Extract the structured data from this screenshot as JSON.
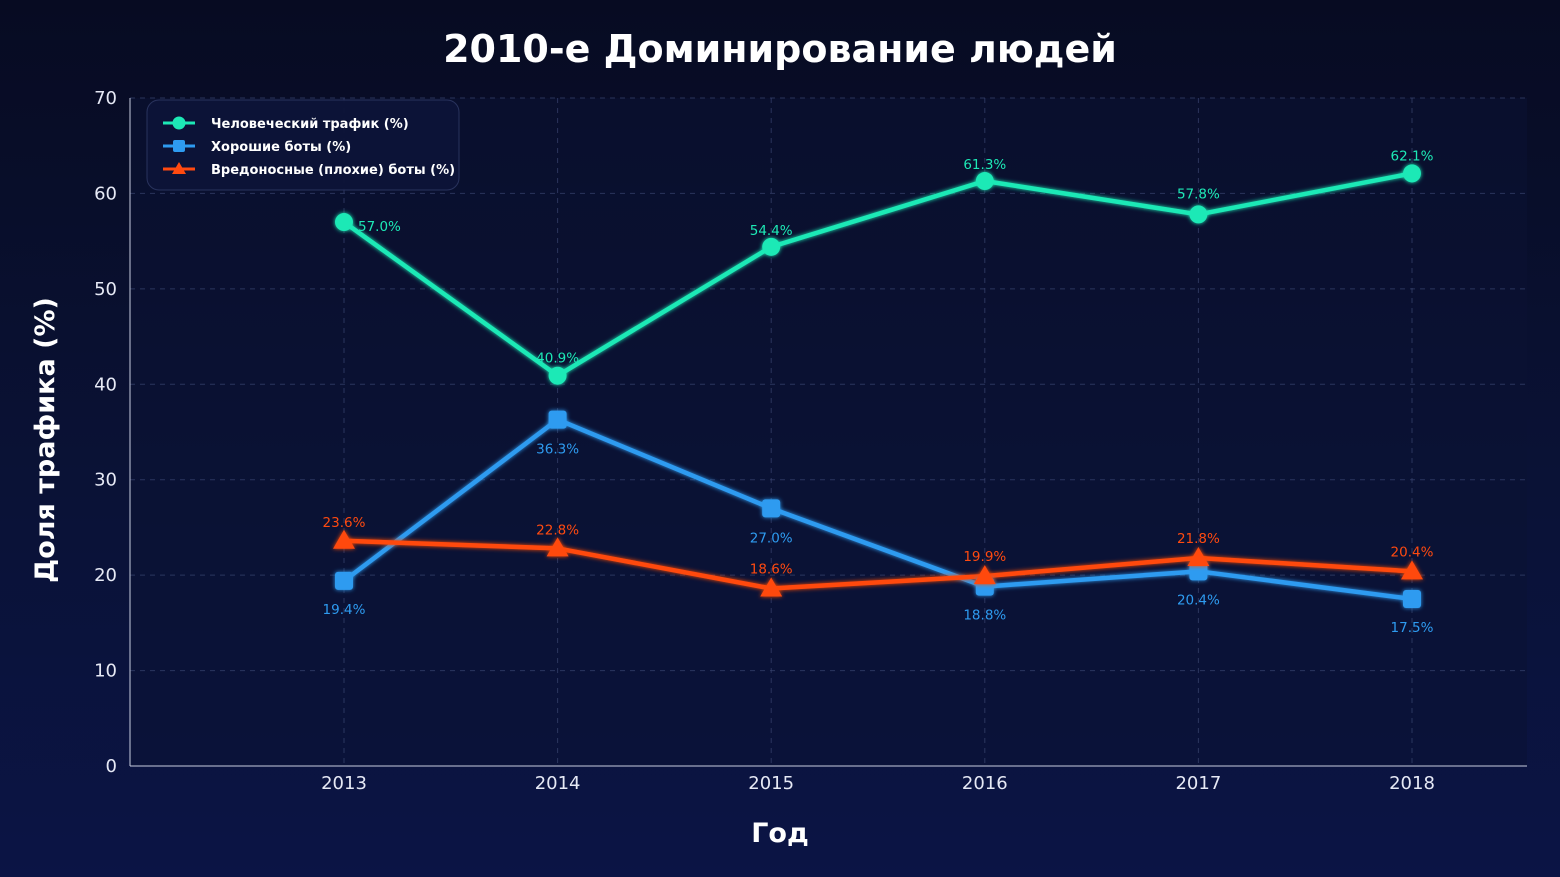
{
  "chart_data": {
    "type": "line",
    "title": "2010-е Доминирование людей",
    "xlabel": "Год",
    "ylabel": "Доля трафика (%)",
    "x": [
      "2013",
      "2014",
      "2015",
      "2016",
      "2017",
      "2018"
    ],
    "ylim": [
      0,
      70
    ],
    "yticks": [
      0,
      10,
      20,
      30,
      40,
      50,
      60,
      70
    ],
    "grid": true,
    "legend_position": "top-left",
    "series": [
      {
        "name": "Человеческий трафик (%)",
        "color": "#1de9b6",
        "marker": "circle",
        "values": [
          57.0,
          40.9,
          54.4,
          61.3,
          57.8,
          62.1
        ],
        "labels": [
          "57.0%",
          "40.9%",
          "54.4%",
          "61.3%",
          "57.8%",
          "62.1%"
        ]
      },
      {
        "name": "Хорошие боты (%)",
        "color": "#2e9bf0",
        "marker": "square",
        "values": [
          19.4,
          36.3,
          27.0,
          18.8,
          20.4,
          17.5
        ],
        "labels": [
          "19.4%",
          "36.3%",
          "27.0%",
          "18.8%",
          "20.4%",
          "17.5%"
        ]
      },
      {
        "name": "Вредоносные (плохие) боты (%)",
        "color": "#ff4a10",
        "marker": "triangle",
        "values": [
          23.6,
          22.8,
          18.6,
          19.9,
          21.8,
          20.4
        ],
        "labels": [
          "23.6%",
          "22.8%",
          "18.6%",
          "19.9%",
          "21.8%",
          "20.4%"
        ]
      }
    ]
  }
}
